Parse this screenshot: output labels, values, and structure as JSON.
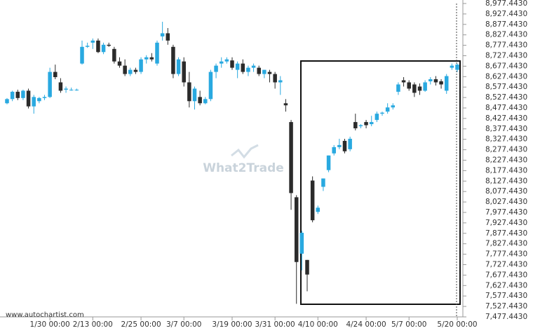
{
  "chart_data": {
    "type": "candlestick",
    "watermark": "What2Trade",
    "source": "www.autochartist.com",
    "up_color": "#29a9e0",
    "down_color": "#2b2b2b",
    "categories": [
      null,
      null,
      null,
      null,
      null,
      null,
      null,
      null,
      "1/30 00:00",
      null,
      null,
      null,
      null,
      null,
      null,
      null,
      "2/13 00:00",
      null,
      null,
      null,
      null,
      null,
      null,
      null,
      null,
      "2/25 00:00",
      null,
      null,
      null,
      null,
      null,
      null,
      null,
      "3/7 00:00",
      null,
      null,
      null,
      null,
      null,
      null,
      null,
      null,
      "3/19 00:00",
      null,
      null,
      null,
      null,
      null,
      null,
      null,
      "3/31 00:00",
      null,
      null,
      null,
      null,
      null,
      null,
      null,
      "4/10 00:00",
      null,
      null,
      null,
      null,
      null,
      null,
      null,
      null,
      "4/24 00:00",
      null,
      null,
      null,
      null,
      null,
      null,
      null,
      "5/7 00:00",
      null,
      null,
      null,
      null,
      null,
      null,
      null,
      null,
      "5/20 00:00"
    ],
    "open": [
      8500,
      8520,
      8555,
      8525,
      8560,
      8485,
      8510,
      8525,
      8530,
      8650,
      8600,
      8565,
      8565,
      8565,
      8690,
      8770,
      8790,
      8800,
      8745,
      8780,
      8760,
      8700,
      8680,
      8640,
      8660,
      8650,
      8710,
      8720,
      8690,
      8820,
      8835,
      8770,
      8640,
      8700,
      8600,
      8510,
      8530,
      8500,
      8520,
      8650,
      8690,
      8700,
      8705,
      8660,
      8690,
      8650,
      8670,
      8670,
      8640,
      8650,
      8640,
      8600,
      8500,
      8410,
      8050,
      7780,
      7750,
      8130,
      7980,
      8100,
      8180,
      8260,
      8290,
      8320,
      8280,
      8410,
      8390,
      8410,
      8400,
      8420,
      8450,
      8460,
      8480,
      8555,
      8610,
      8600,
      8590,
      8580,
      8560,
      8605,
      8615,
      8605,
      8560,
      8670,
      8660
    ],
    "high": [
      8525,
      8560,
      8565,
      8565,
      8570,
      8540,
      8530,
      8540,
      8670,
      8685,
      8620,
      8580,
      8575,
      8570,
      8800,
      8790,
      8810,
      8810,
      8790,
      8790,
      8770,
      8720,
      8710,
      8670,
      8670,
      8720,
      8730,
      8740,
      8800,
      8890,
      8860,
      8780,
      8720,
      8720,
      8650,
      8580,
      8560,
      8530,
      8660,
      8690,
      8720,
      8720,
      8720,
      8700,
      8710,
      8680,
      8690,
      8680,
      8660,
      8660,
      8650,
      8630,
      8520,
      8420,
      8060,
      7890,
      7750,
      8150,
      8010,
      8140,
      8250,
      8300,
      8330,
      8330,
      8340,
      8450,
      8400,
      8420,
      8440,
      8460,
      8460,
      8500,
      8500,
      8600,
      8625,
      8610,
      8600,
      8595,
      8610,
      8625,
      8630,
      8615,
      8640,
      8690,
      8690
    ],
    "low": [
      8495,
      8510,
      8515,
      8515,
      8475,
      8450,
      8500,
      8515,
      8525,
      8615,
      8550,
      8550,
      8560,
      8560,
      8685,
      8765,
      8760,
      8740,
      8735,
      8770,
      8690,
      8670,
      8630,
      8630,
      8640,
      8640,
      8690,
      8700,
      8680,
      8800,
      8780,
      8620,
      8630,
      8580,
      8480,
      8470,
      8490,
      8495,
      8510,
      8620,
      8670,
      8690,
      8660,
      8620,
      8640,
      8630,
      8650,
      8630,
      8620,
      8600,
      8570,
      8540,
      8460,
      7990,
      7540,
      7700,
      7600,
      7930,
      7970,
      8080,
      8170,
      8250,
      8280,
      8260,
      8270,
      8370,
      8380,
      8380,
      8390,
      8410,
      8440,
      8450,
      8470,
      8540,
      8580,
      8560,
      8530,
      8540,
      8555,
      8590,
      8585,
      8570,
      8545,
      8660,
      8650
    ],
    "close": [
      8520,
      8555,
      8525,
      8560,
      8485,
      8530,
      8525,
      8530,
      8650,
      8625,
      8560,
      8570,
      8565,
      8565,
      8770,
      8775,
      8800,
      8745,
      8780,
      8775,
      8700,
      8680,
      8640,
      8660,
      8650,
      8710,
      8720,
      8710,
      8790,
      8835,
      8800,
      8640,
      8710,
      8600,
      8510,
      8570,
      8500,
      8520,
      8650,
      8680,
      8700,
      8710,
      8670,
      8690,
      8650,
      8670,
      8680,
      8640,
      8660,
      8640,
      8600,
      8610,
      8490,
      8070,
      7740,
      7880,
      7680,
      7940,
      8000,
      8140,
      8250,
      8290,
      8300,
      8270,
      8330,
      8380,
      8395,
      8395,
      8410,
      8450,
      8455,
      8480,
      8490,
      8590,
      8600,
      8570,
      8550,
      8560,
      8600,
      8615,
      8600,
      8590,
      8630,
      8680,
      8685
    ],
    "ylim": [
      7477.443,
      8977.443
    ],
    "yticks": [
      {
        "value": 7477.443,
        "label": "7,477.4430"
      },
      {
        "value": 7527.443,
        "label": "7,527.4430"
      },
      {
        "value": 7577.443,
        "label": "7,577.4430"
      },
      {
        "value": 7627.443,
        "label": "7,627.4430"
      },
      {
        "value": 7677.443,
        "label": "7,677.4430"
      },
      {
        "value": 7727.443,
        "label": "7,727.4430"
      },
      {
        "value": 7777.443,
        "label": "7,777.4430"
      },
      {
        "value": 7827.443,
        "label": "7,827.4430"
      },
      {
        "value": 7877.443,
        "label": "7,877.4430"
      },
      {
        "value": 7927.443,
        "label": "7,927.4430"
      },
      {
        "value": 7977.443,
        "label": "7,977.4430"
      },
      {
        "value": 8027.443,
        "label": "8,027.4430"
      },
      {
        "value": 8077.443,
        "label": "8,077.4430"
      },
      {
        "value": 8127.443,
        "label": "8,127.4430"
      },
      {
        "value": 8177.443,
        "label": "8,177.4430"
      },
      {
        "value": 8227.443,
        "label": "8,227.4430"
      },
      {
        "value": 8277.443,
        "label": "8,277.4430"
      },
      {
        "value": 8327.443,
        "label": "8,327.4430"
      },
      {
        "value": 8377.443,
        "label": "8,377.4430"
      },
      {
        "value": 8427.443,
        "label": "8,427.4430"
      },
      {
        "value": 8477.443,
        "label": "8,477.4430"
      },
      {
        "value": 8527.443,
        "label": "8,527.4430"
      },
      {
        "value": 8577.443,
        "label": "8,577.4430"
      },
      {
        "value": 8627.443,
        "label": "8,627.4430"
      },
      {
        "value": 8677.443,
        "label": "8,677.4430"
      },
      {
        "value": 8727.443,
        "label": "8,727.4430"
      },
      {
        "value": 8777.443,
        "label": "8,777.4430"
      },
      {
        "value": 8827.443,
        "label": "8,827.4430"
      },
      {
        "value": 8877.443,
        "label": "8,877.4430"
      },
      {
        "value": 8927.443,
        "label": "8,927.4430"
      },
      {
        "value": 8977.443,
        "label": "8,977.4430"
      }
    ]
  }
}
